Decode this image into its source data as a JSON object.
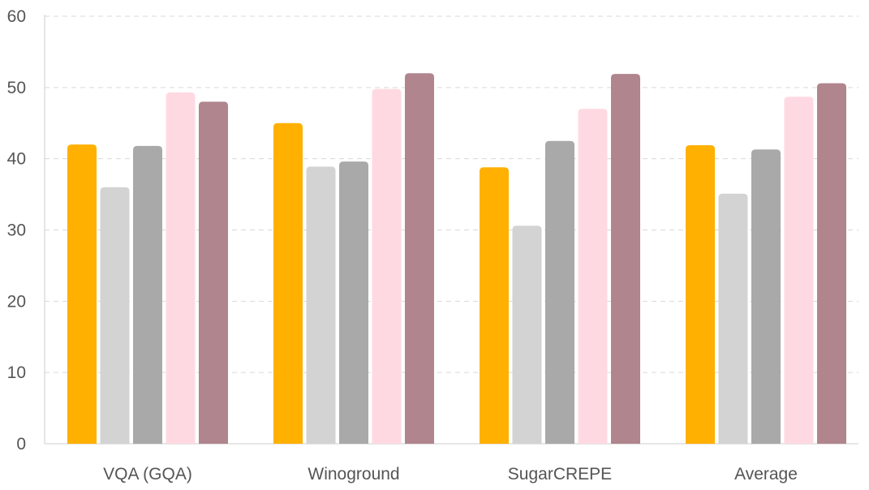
{
  "chart_data": {
    "type": "bar",
    "title": "",
    "xlabel": "",
    "ylabel": "",
    "categories": [
      "VQA (GQA)",
      "Winoground",
      "SugarCREPE",
      "Average"
    ],
    "ylim": [
      0,
      60
    ],
    "yticks": [
      0,
      10,
      20,
      30,
      40,
      50,
      60
    ],
    "grid": true,
    "legend": "none",
    "series": [
      {
        "color": "#FFB000",
        "values": [
          42.0,
          45.0,
          38.8,
          41.9
        ]
      },
      {
        "color": "#D3D3D3",
        "values": [
          36.0,
          38.9,
          30.6,
          35.1
        ]
      },
      {
        "color": "#A9A9A9",
        "values": [
          41.8,
          39.6,
          42.5,
          41.3
        ]
      },
      {
        "color": "#FFD9E1",
        "values": [
          49.3,
          49.8,
          47.0,
          48.7
        ]
      },
      {
        "color": "#B0858D",
        "values": [
          48.0,
          52.0,
          51.9,
          50.6
        ]
      }
    ]
  }
}
